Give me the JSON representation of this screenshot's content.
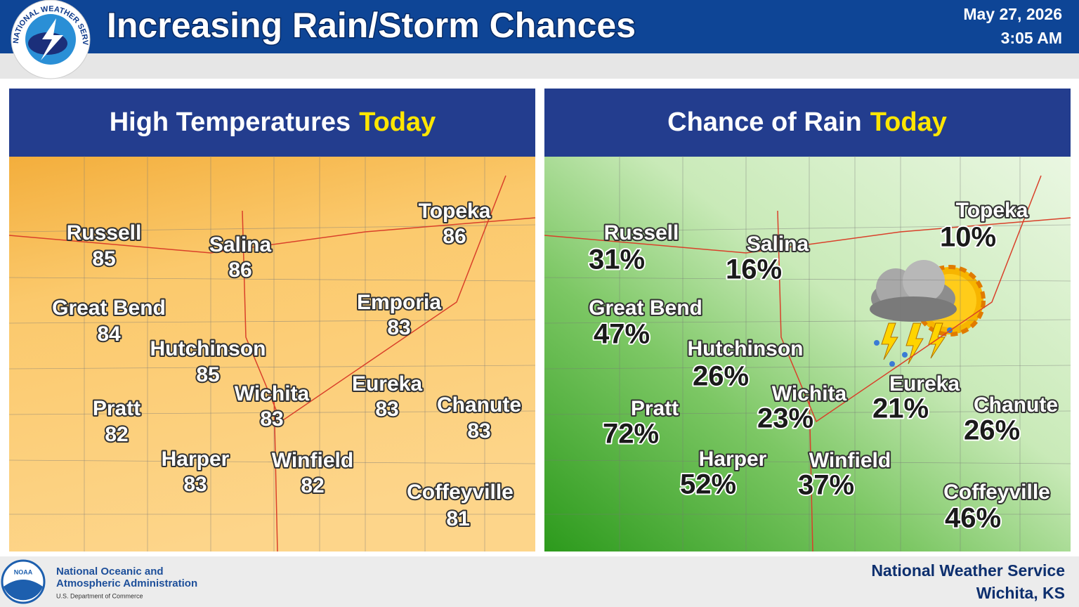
{
  "header": {
    "title": "Increasing Rain/Storm Chances",
    "date": "May 27, 2026",
    "time": "3:05 AM",
    "logo_text": "NATIONAL WEATHER SERVICE"
  },
  "panels": [
    {
      "title": "High Temperatures",
      "highlight": "Today",
      "cities": [
        {
          "name": "Russell",
          "value": 85
        },
        {
          "name": "Salina",
          "value": 86
        },
        {
          "name": "Topeka",
          "value": 86
        },
        {
          "name": "Great Bend",
          "value": 84
        },
        {
          "name": "Emporia",
          "value": 83
        },
        {
          "name": "Hutchinson",
          "value": 85
        },
        {
          "name": "Wichita",
          "value": 83
        },
        {
          "name": "Eureka",
          "value": 83
        },
        {
          "name": "Chanute",
          "value": 83
        },
        {
          "name": "Pratt",
          "value": 82
        },
        {
          "name": "Harper",
          "value": 83
        },
        {
          "name": "Winfield",
          "value": 82
        },
        {
          "name": "Coffeyville",
          "value": 81
        }
      ]
    },
    {
      "title": "Chance of Rain",
      "highlight": "Today",
      "cities": [
        {
          "name": "Russell",
          "value": "31%"
        },
        {
          "name": "Salina",
          "value": "16%"
        },
        {
          "name": "Topeka",
          "value": "10%"
        },
        {
          "name": "Great Bend",
          "value": "47%"
        },
        {
          "name": "Hutchinson",
          "value": "26%"
        },
        {
          "name": "Wichita",
          "value": "23%"
        },
        {
          "name": "Eureka",
          "value": "21%"
        },
        {
          "name": "Chanute",
          "value": "26%"
        },
        {
          "name": "Pratt",
          "value": "72%"
        },
        {
          "name": "Harper",
          "value": "52%"
        },
        {
          "name": "Winfield",
          "value": "37%"
        },
        {
          "name": "Coffeyville",
          "value": "46%"
        }
      ]
    }
  ],
  "footer": {
    "noaa": "NOAA",
    "org_line1": "National Oceanic and",
    "org_line2": "Atmospheric Administration",
    "dept": "U.S. Department of Commerce",
    "office": "National Weather Service",
    "location": "Wichita, KS"
  }
}
